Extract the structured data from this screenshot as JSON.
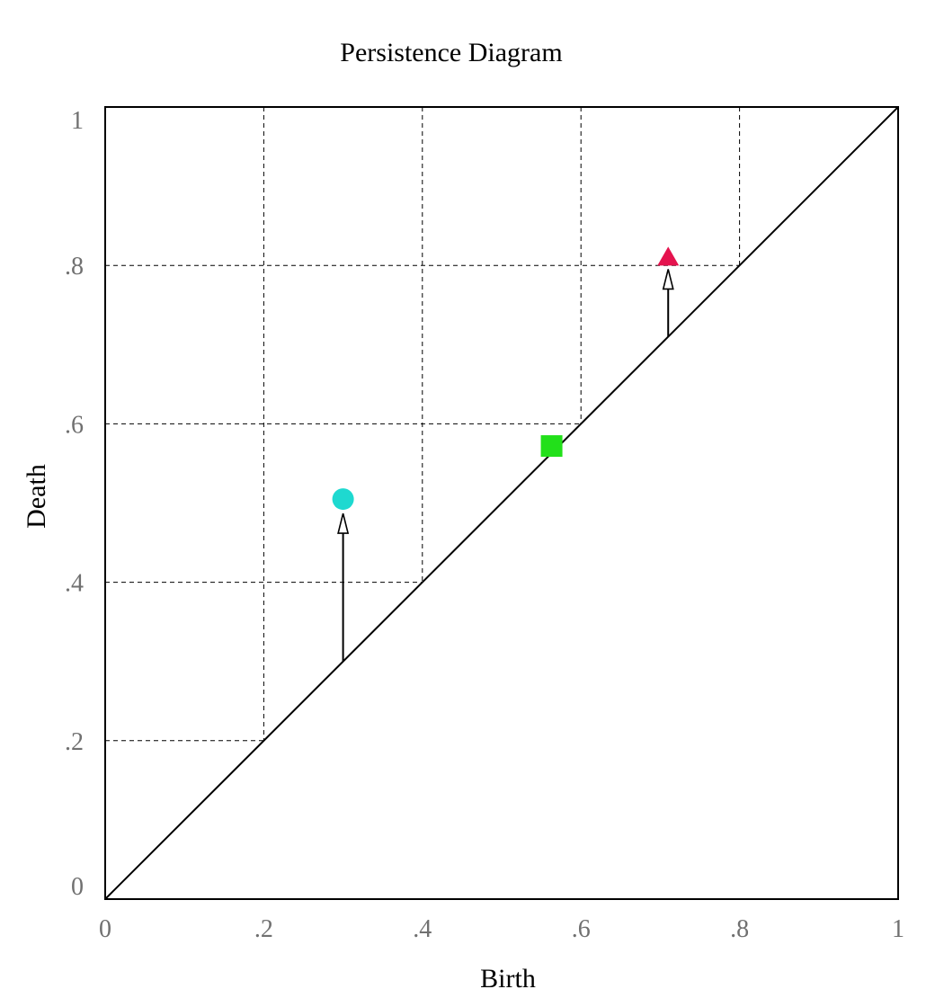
{
  "chart_data": {
    "type": "scatter",
    "title": "Persistence Diagram",
    "xlabel": "Birth",
    "ylabel": "Death",
    "xlim": [
      0,
      1
    ],
    "ylim": [
      0,
      1
    ],
    "x_ticks": [
      0,
      0.2,
      0.4,
      0.6,
      0.8,
      1
    ],
    "y_ticks": [
      0,
      0.2,
      0.4,
      0.6,
      0.8,
      1
    ],
    "x_tick_labels": [
      "0",
      ".2",
      ".4",
      ".6",
      ".8",
      "1"
    ],
    "y_tick_labels": [
      "0",
      ".2",
      ".4",
      ".6",
      ".8",
      "1"
    ],
    "grid": true,
    "diagonal": true,
    "points": [
      {
        "shape": "circle",
        "birth": 0.3,
        "death": 0.505,
        "color": "#1ed9d0",
        "arrow_from_death": 0.3
      },
      {
        "shape": "square",
        "birth": 0.563,
        "death": 0.572,
        "color": "#22e01a"
      },
      {
        "shape": "triangle",
        "birth": 0.71,
        "death": 0.81,
        "color": "#e5134e",
        "arrow_from_death": 0.71
      }
    ]
  }
}
